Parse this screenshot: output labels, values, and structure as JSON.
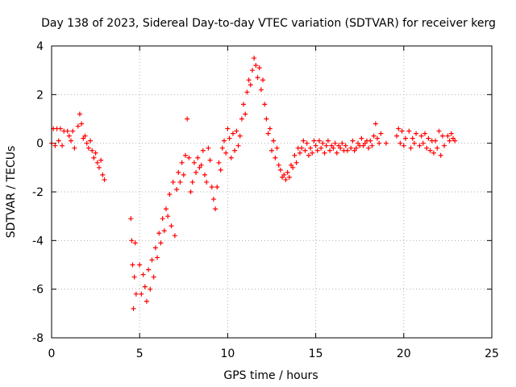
{
  "chart_data": {
    "type": "scatter",
    "title": "Day 138 of 2023, Sidereal Day-to-day VTEC variation (SDTVAR) for receiver kerg",
    "xlabel": "GPS time / hours",
    "ylabel": "SDTVAR / TECUs",
    "xlim": [
      0,
      25
    ],
    "ylim": [
      -8,
      4
    ],
    "x_ticks": [
      0,
      5,
      10,
      15,
      20,
      25
    ],
    "y_ticks": [
      -8,
      -6,
      -4,
      -2,
      0,
      2,
      4
    ],
    "grid": true,
    "marker": "+",
    "color": "#ff0000",
    "series": [
      {
        "name": "SDTVAR",
        "points": [
          [
            0.0,
            0.0
          ],
          [
            0.1,
            0.6
          ],
          [
            0.2,
            -0.1
          ],
          [
            0.3,
            0.6
          ],
          [
            0.4,
            0.1
          ],
          [
            0.5,
            0.6
          ],
          [
            0.6,
            -0.1
          ],
          [
            0.7,
            0.5
          ],
          [
            0.9,
            0.5
          ],
          [
            1.0,
            0.3
          ],
          [
            1.1,
            0.1
          ],
          [
            1.2,
            0.5
          ],
          [
            1.3,
            -0.2
          ],
          [
            1.5,
            0.7
          ],
          [
            1.6,
            1.2
          ],
          [
            1.7,
            0.8
          ],
          [
            1.8,
            0.2
          ],
          [
            1.9,
            0.3
          ],
          [
            2.0,
            0.0
          ],
          [
            2.1,
            -0.2
          ],
          [
            2.2,
            0.1
          ],
          [
            2.3,
            -0.3
          ],
          [
            2.4,
            -0.6
          ],
          [
            2.5,
            -0.4
          ],
          [
            2.6,
            -0.8
          ],
          [
            2.7,
            -1.0
          ],
          [
            2.8,
            -0.7
          ],
          [
            2.9,
            -1.3
          ],
          [
            3.0,
            -1.5
          ],
          [
            4.5,
            -3.1
          ],
          [
            4.55,
            -4.0
          ],
          [
            4.6,
            -5.0
          ],
          [
            4.65,
            -6.8
          ],
          [
            4.7,
            -5.5
          ],
          [
            4.75,
            -4.1
          ],
          [
            4.8,
            -6.2
          ],
          [
            5.0,
            -5.0
          ],
          [
            5.1,
            -6.2
          ],
          [
            5.2,
            -5.4
          ],
          [
            5.3,
            -5.9
          ],
          [
            5.4,
            -6.5
          ],
          [
            5.5,
            -5.2
          ],
          [
            5.6,
            -6.0
          ],
          [
            5.7,
            -4.8
          ],
          [
            5.8,
            -5.5
          ],
          [
            5.9,
            -4.3
          ],
          [
            6.0,
            -4.7
          ],
          [
            6.1,
            -3.7
          ],
          [
            6.2,
            -4.1
          ],
          [
            6.3,
            -3.1
          ],
          [
            6.4,
            -3.6
          ],
          [
            6.5,
            -2.7
          ],
          [
            6.6,
            -3.0
          ],
          [
            6.7,
            -2.1
          ],
          [
            6.8,
            -3.4
          ],
          [
            6.9,
            -1.6
          ],
          [
            7.0,
            -3.8
          ],
          [
            7.1,
            -1.9
          ],
          [
            7.2,
            -1.2
          ],
          [
            7.3,
            -1.6
          ],
          [
            7.4,
            -0.8
          ],
          [
            7.5,
            -1.3
          ],
          [
            7.6,
            -0.5
          ],
          [
            7.7,
            1.0
          ],
          [
            7.8,
            -0.6
          ],
          [
            7.9,
            -2.0
          ],
          [
            8.0,
            -1.6
          ],
          [
            8.1,
            -0.8
          ],
          [
            8.2,
            -1.2
          ],
          [
            8.3,
            -0.6
          ],
          [
            8.4,
            -1.0
          ],
          [
            8.5,
            -0.9
          ],
          [
            8.6,
            -0.3
          ],
          [
            8.7,
            -1.3
          ],
          [
            8.8,
            -1.6
          ],
          [
            8.9,
            -0.2
          ],
          [
            9.0,
            -0.7
          ],
          [
            9.1,
            -1.8
          ],
          [
            9.2,
            -2.3
          ],
          [
            9.3,
            -2.7
          ],
          [
            9.4,
            -1.8
          ],
          [
            9.5,
            -0.8
          ],
          [
            9.6,
            -1.1
          ],
          [
            9.7,
            -0.2
          ],
          [
            9.8,
            0.1
          ],
          [
            9.9,
            -0.4
          ],
          [
            10.0,
            0.6
          ],
          [
            10.1,
            0.2
          ],
          [
            10.2,
            -0.6
          ],
          [
            10.3,
            0.4
          ],
          [
            10.4,
            -0.3
          ],
          [
            10.5,
            0.5
          ],
          [
            10.6,
            -0.1
          ],
          [
            10.7,
            0.3
          ],
          [
            10.8,
            1.0
          ],
          [
            10.9,
            1.6
          ],
          [
            11.0,
            1.2
          ],
          [
            11.1,
            2.1
          ],
          [
            11.2,
            2.6
          ],
          [
            11.3,
            2.4
          ],
          [
            11.4,
            3.0
          ],
          [
            11.5,
            3.5
          ],
          [
            11.6,
            3.2
          ],
          [
            11.7,
            2.7
          ],
          [
            11.8,
            3.1
          ],
          [
            11.9,
            2.2
          ],
          [
            12.0,
            2.6
          ],
          [
            12.1,
            1.6
          ],
          [
            12.2,
            1.0
          ],
          [
            12.3,
            0.4
          ],
          [
            12.4,
            0.6
          ],
          [
            12.5,
            -0.3
          ],
          [
            12.6,
            0.1
          ],
          [
            12.7,
            -0.6
          ],
          [
            12.8,
            -0.2
          ],
          [
            12.9,
            -0.9
          ],
          [
            13.0,
            -1.1
          ],
          [
            13.1,
            -1.4
          ],
          [
            13.2,
            -1.3
          ],
          [
            13.3,
            -1.5
          ],
          [
            13.4,
            -1.2
          ],
          [
            13.5,
            -1.4
          ],
          [
            13.6,
            -0.9
          ],
          [
            13.7,
            -1.0
          ],
          [
            13.8,
            -0.5
          ],
          [
            13.9,
            -0.8
          ],
          [
            14.0,
            -0.2
          ],
          [
            14.1,
            -0.4
          ],
          [
            14.2,
            -0.2
          ],
          [
            14.3,
            0.1
          ],
          [
            14.4,
            -0.3
          ],
          [
            14.5,
            0.0
          ],
          [
            14.6,
            -0.5
          ],
          [
            14.7,
            -0.2
          ],
          [
            14.8,
            -0.4
          ],
          [
            14.9,
            0.1
          ],
          [
            15.0,
            -0.1
          ],
          [
            15.1,
            -0.3
          ],
          [
            15.2,
            0.1
          ],
          [
            15.3,
            -0.2
          ],
          [
            15.4,
            0.0
          ],
          [
            15.5,
            -0.4
          ],
          [
            15.6,
            -0.1
          ],
          [
            15.7,
            0.1
          ],
          [
            15.8,
            -0.3
          ],
          [
            15.9,
            -0.1
          ],
          [
            16.0,
            -0.2
          ],
          [
            16.1,
            0.0
          ],
          [
            16.2,
            -0.4
          ],
          [
            16.3,
            -0.1
          ],
          [
            16.4,
            -0.2
          ],
          [
            16.5,
            0.0
          ],
          [
            16.6,
            -0.3
          ],
          [
            16.7,
            -0.1
          ],
          [
            16.8,
            -0.3
          ],
          [
            17.0,
            -0.2
          ],
          [
            17.1,
            0.1
          ],
          [
            17.2,
            -0.3
          ],
          [
            17.3,
            -0.2
          ],
          [
            17.4,
            0.0
          ],
          [
            17.5,
            -0.1
          ],
          [
            17.6,
            0.2
          ],
          [
            17.7,
            -0.1
          ],
          [
            17.8,
            0.0
          ],
          [
            17.9,
            0.1
          ],
          [
            18.0,
            -0.2
          ],
          [
            18.1,
            0.1
          ],
          [
            18.2,
            -0.1
          ],
          [
            18.3,
            0.3
          ],
          [
            18.4,
            0.8
          ],
          [
            18.5,
            0.2
          ],
          [
            18.6,
            0.0
          ],
          [
            18.7,
            0.4
          ],
          [
            19.0,
            0.0
          ],
          [
            19.6,
            0.3
          ],
          [
            19.7,
            0.6
          ],
          [
            19.8,
            0.0
          ],
          [
            19.9,
            0.5
          ],
          [
            20.0,
            -0.1
          ],
          [
            20.1,
            0.2
          ],
          [
            20.3,
            0.5
          ],
          [
            20.4,
            -0.2
          ],
          [
            20.5,
            0.2
          ],
          [
            20.6,
            0.0
          ],
          [
            20.7,
            0.4
          ],
          [
            20.9,
            -0.1
          ],
          [
            21.0,
            0.3
          ],
          [
            21.1,
            0.0
          ],
          [
            21.2,
            0.4
          ],
          [
            21.3,
            -0.2
          ],
          [
            21.4,
            0.2
          ],
          [
            21.5,
            -0.3
          ],
          [
            21.6,
            0.1
          ],
          [
            21.7,
            -0.4
          ],
          [
            21.8,
            0.1
          ],
          [
            21.9,
            -0.2
          ],
          [
            22.0,
            0.5
          ],
          [
            22.1,
            -0.5
          ],
          [
            22.2,
            0.3
          ],
          [
            22.3,
            -0.1
          ],
          [
            22.5,
            0.3
          ],
          [
            22.6,
            0.1
          ],
          [
            22.7,
            0.4
          ],
          [
            22.8,
            0.2
          ],
          [
            22.9,
            0.1
          ]
        ]
      }
    ]
  }
}
